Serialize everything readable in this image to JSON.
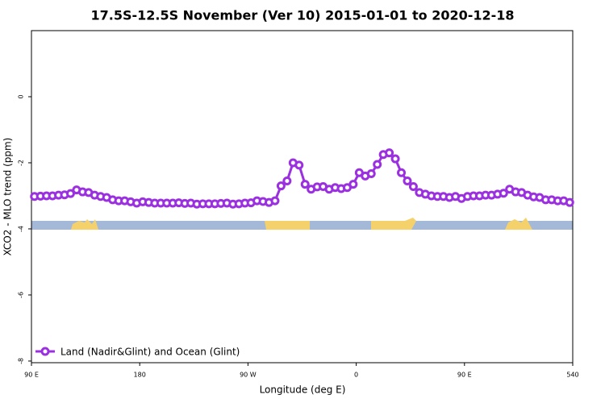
{
  "chart_data": {
    "type": "line",
    "title": "17.5S-12.5S November (Ver 10)   2015-01-01 to 2020-12-18",
    "x_label": "Longitude (deg E)",
    "y_label": "XCO2 - MLO trend (ppm)",
    "xlim": [
      90,
      540
    ],
    "xticks": [
      {
        "value": 90,
        "label": "90 E"
      },
      180,
      {
        "value": 270,
        "label": "90 W"
      },
      {
        "value": 360,
        "label": "0"
      },
      {
        "value": 450,
        "label": "90 E"
      },
      540
    ],
    "ylim": [
      -8.05,
      2
    ],
    "yticks": [
      0,
      -2,
      -4,
      -6,
      -8
    ],
    "legend_position": "bottom-left",
    "x": [
      92.5,
      97.5,
      102.5,
      107.5,
      112.5,
      117.5,
      122.5,
      127.5,
      132.5,
      137.5,
      142.5,
      147.5,
      152.5,
      157.5,
      162.5,
      167.5,
      172.5,
      177.5,
      182.5,
      187.5,
      192.5,
      197.5,
      202.5,
      207.5,
      212.5,
      217.5,
      222.5,
      227.5,
      232.5,
      237.5,
      242.5,
      247.5,
      252.5,
      257.5,
      262.5,
      267.5,
      272.5,
      277.5,
      282.5,
      287.5,
      292.5,
      297.5,
      302.5,
      307.5,
      312.5,
      317.5,
      322.5,
      327.5,
      332.5,
      337.5,
      342.5,
      347.5,
      352.5,
      357.5,
      362.5,
      367.5,
      372.5,
      377.5,
      382.5,
      387.5,
      392.5,
      397.5,
      402.5,
      407.5,
      412.5,
      417.5,
      422.5,
      427.5,
      432.5,
      437.5,
      442.5,
      447.5,
      452.5,
      457.5,
      462.5,
      467.5,
      472.5,
      477.5,
      482.5,
      487.5,
      492.5,
      497.5,
      502.5,
      507.5,
      512.5,
      517.5,
      522.5,
      527.5,
      532.5,
      537.5
    ],
    "series": [
      {
        "name": "Land (Nadir&Glint) and Ocean (Glint)",
        "color": "#9b30e0",
        "values": [
          -3.02,
          -3.01,
          -3.0,
          -3.0,
          -2.98,
          -2.97,
          -2.93,
          -2.82,
          -2.88,
          -2.9,
          -2.98,
          -3.02,
          -3.05,
          -3.12,
          -3.15,
          -3.15,
          -3.18,
          -3.22,
          -3.18,
          -3.2,
          -3.22,
          -3.22,
          -3.22,
          -3.22,
          -3.21,
          -3.23,
          -3.22,
          -3.25,
          -3.24,
          -3.24,
          -3.24,
          -3.23,
          -3.22,
          -3.25,
          -3.24,
          -3.22,
          -3.21,
          -3.15,
          -3.17,
          -3.2,
          -3.15,
          -2.7,
          -2.55,
          -2.0,
          -2.07,
          -2.65,
          -2.8,
          -2.73,
          -2.72,
          -2.8,
          -2.75,
          -2.78,
          -2.75,
          -2.65,
          -2.3,
          -2.4,
          -2.33,
          -2.05,
          -1.75,
          -1.7,
          -1.88,
          -2.3,
          -2.55,
          -2.72,
          -2.9,
          -2.95,
          -3.0,
          -3.02,
          -3.02,
          -3.05,
          -3.02,
          -3.08,
          -3.02,
          -3.0,
          -3.0,
          -2.98,
          -2.98,
          -2.95,
          -2.92,
          -2.8,
          -2.88,
          -2.9,
          -2.98,
          -3.03,
          -3.05,
          -3.12,
          -3.12,
          -3.15,
          -3.15,
          -3.2
        ]
      }
    ]
  }
}
